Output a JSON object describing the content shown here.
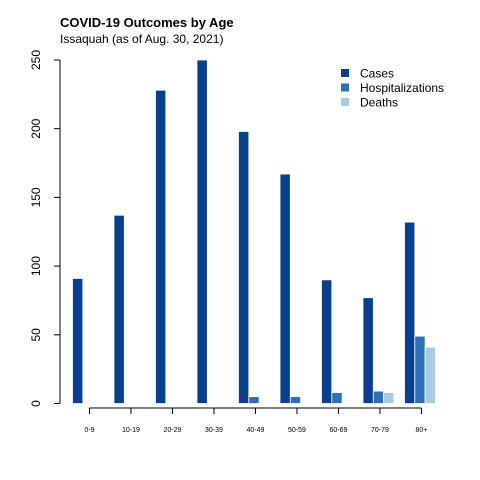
{
  "title": "COVID-19 Outcomes by Age",
  "subtitle": "Issaquah (as of Aug. 30, 2021)",
  "chart_data": {
    "type": "bar",
    "title": "COVID-19 Outcomes by Age",
    "subtitle": "Issaquah (as of Aug. 30, 2021)",
    "categories": [
      "0-9",
      "10-19",
      "20-29",
      "30-39",
      "40-49",
      "50-59",
      "60-69",
      "70-79",
      "80+"
    ],
    "series": [
      {
        "name": "Cases",
        "color": "#08408f",
        "values": [
          91,
          137,
          228,
          250,
          198,
          167,
          90,
          77,
          132
        ]
      },
      {
        "name": "Hospitalizations",
        "color": "#2f6fb5",
        "values": [
          0,
          0,
          0,
          0,
          5,
          5,
          8,
          9,
          49
        ]
      },
      {
        "name": "Deaths",
        "color": "#a9cbe6",
        "values": [
          0,
          0,
          0,
          0,
          0,
          0,
          0,
          8,
          41
        ]
      }
    ],
    "yticks": [
      0,
      50,
      100,
      150,
      200,
      250
    ],
    "ylim": [
      0,
      250
    ],
    "xlabel": "",
    "ylabel": "",
    "legend_position": "top-right",
    "grid": false
  }
}
